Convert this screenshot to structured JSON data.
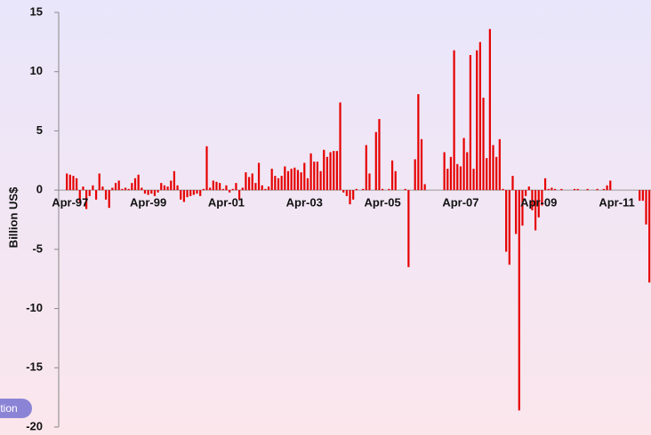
{
  "chart_data": {
    "type": "bar",
    "y_label": "Billion US$",
    "color": "#e60000",
    "categories": [
      null,
      null,
      null,
      "Apr-97",
      null,
      null,
      null,
      null,
      null,
      null,
      null,
      null,
      null,
      null,
      null,
      null,
      null,
      null,
      null,
      null,
      null,
      null,
      null,
      null,
      null,
      null,
      null,
      "Apr-99",
      null,
      null,
      null,
      null,
      null,
      null,
      null,
      null,
      null,
      null,
      null,
      null,
      null,
      null,
      null,
      null,
      null,
      null,
      null,
      null,
      null,
      null,
      null,
      "Apr-01",
      null,
      null,
      null,
      null,
      null,
      null,
      null,
      null,
      null,
      null,
      null,
      null,
      null,
      null,
      null,
      null,
      null,
      null,
      null,
      null,
      null,
      null,
      null,
      "Apr-03",
      null,
      null,
      null,
      null,
      null,
      null,
      null,
      null,
      null,
      null,
      null,
      null,
      null,
      null,
      null,
      null,
      null,
      null,
      null,
      null,
      null,
      null,
      null,
      "Apr-05",
      null,
      null,
      null,
      null,
      null,
      null,
      null,
      null,
      null,
      null,
      null,
      null,
      null,
      null,
      null,
      null,
      null,
      null,
      null,
      null,
      null,
      null,
      null,
      "Apr-07",
      null,
      null,
      null,
      null,
      null,
      null,
      null,
      null,
      null,
      null,
      null,
      null,
      null,
      null,
      null,
      null,
      null,
      null,
      null,
      null,
      null,
      null,
      null,
      "Apr-09",
      null,
      null,
      null,
      null,
      null,
      null,
      null,
      null,
      null,
      null,
      null,
      null,
      null,
      null,
      null,
      null,
      null,
      null,
      null,
      null,
      null,
      null,
      null,
      "Apr-11",
      null,
      null,
      null,
      null,
      null,
      null,
      null,
      null,
      null,
      null
    ],
    "values": [
      0,
      0,
      1.4,
      1.3,
      1.2,
      1.0,
      -1.0,
      0.3,
      -1.6,
      -0.5,
      0.4,
      -0.8,
      1.4,
      0.3,
      -0.8,
      -1.5,
      0.2,
      0.6,
      0.8,
      0.1,
      0.2,
      0.1,
      0.6,
      1.0,
      1.3,
      0.2,
      -0.3,
      -0.4,
      -0.3,
      -0.5,
      -0.2,
      0.6,
      0.4,
      0.3,
      0.8,
      1.6,
      0.4,
      -0.8,
      -1.0,
      -0.6,
      -0.5,
      -0.4,
      -0.3,
      -0.5,
      0.1,
      3.7,
      0.2,
      0.8,
      0.7,
      0.6,
      0.1,
      0.4,
      -0.2,
      0.1,
      0.6,
      -0.8,
      0.2,
      1.5,
      1.1,
      1.4,
      0.6,
      2.3,
      0.4,
      0.1,
      0.3,
      1.8,
      1.2,
      1.0,
      1.2,
      2.0,
      1.6,
      1.8,
      1.9,
      1.7,
      1.5,
      2.3,
      1.0,
      3.1,
      2.4,
      2.4,
      1.6,
      3.4,
      2.8,
      3.2,
      3.3,
      3.3,
      7.4,
      -0.2,
      -0.5,
      -1.2,
      -0.8,
      0.1,
      0,
      0.1,
      3.8,
      1.4,
      0,
      4.9,
      6.0,
      0.1,
      0,
      0.1,
      2.5,
      1.6,
      0,
      0,
      0.1,
      -6.5,
      0,
      2.6,
      8.1,
      4.3,
      0.5,
      0,
      0,
      0,
      0,
      0,
      3.2,
      1.8,
      2.8,
      11.8,
      2.2,
      2.0,
      4.4,
      3.2,
      11.4,
      1.8,
      11.8,
      12.5,
      7.8,
      2.7,
      13.6,
      3.8,
      2.8,
      4.3,
      0.1,
      -5.2,
      -6.3,
      1.2,
      -3.7,
      -18.6,
      -3.0,
      -0.5,
      0.3,
      -1.7,
      -3.4,
      -2.3,
      -1.3,
      1.0,
      0.1,
      0.2,
      0.1,
      0,
      0.1,
      0,
      0,
      0,
      0.1,
      0.1,
      0,
      0,
      0.1,
      0,
      0,
      0.1,
      0,
      0.1,
      0.4,
      0.8,
      0,
      0,
      0,
      0,
      0,
      0,
      0,
      0,
      -0.9,
      -0.9,
      -2.9,
      -7.8
    ],
    "ylim": [
      -20,
      15
    ],
    "yticks": [
      -20,
      -15,
      -10,
      -5,
      0,
      5,
      10,
      15
    ]
  },
  "button": {
    "label": "tion"
  }
}
